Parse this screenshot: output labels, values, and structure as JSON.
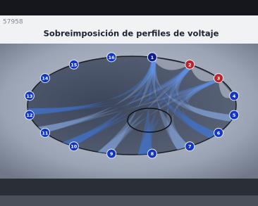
{
  "header": {
    "code": "57958"
  },
  "title": "Sobreimposición de perfiles de voltaje",
  "nodes": [
    {
      "label": "1"
    },
    {
      "label": "2"
    },
    {
      "label": "3"
    },
    {
      "label": "4"
    },
    {
      "label": "5"
    },
    {
      "label": "6"
    },
    {
      "label": "7"
    },
    {
      "label": "8"
    },
    {
      "label": "9"
    },
    {
      "label": "10"
    },
    {
      "label": "11"
    },
    {
      "label": "12"
    },
    {
      "label": "13"
    },
    {
      "label": "14"
    },
    {
      "label": "15"
    },
    {
      "label": "16"
    }
  ]
}
